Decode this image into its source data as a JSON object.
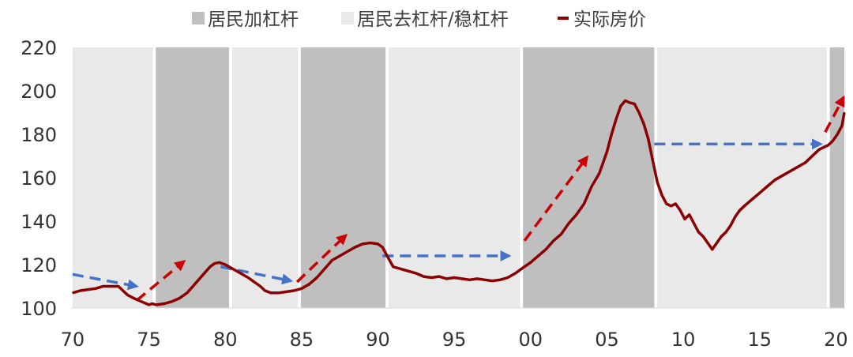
{
  "chart_data": {
    "type": "line",
    "x_range": [
      1969.9,
      2020.6
    ],
    "ylim": [
      100,
      220
    ],
    "y_ticks": [
      "100",
      "120",
      "140",
      "160",
      "180",
      "200",
      "220"
    ],
    "x_ticks": [
      {
        "value": 1970,
        "label": "70"
      },
      {
        "value": 1975,
        "label": "75"
      },
      {
        "value": 1980,
        "label": "80"
      },
      {
        "value": 1985,
        "label": "85"
      },
      {
        "value": 1990,
        "label": "90"
      },
      {
        "value": 1995,
        "label": "95"
      },
      {
        "value": 2000,
        "label": "00"
      },
      {
        "value": 2005,
        "label": "05"
      },
      {
        "value": 2010,
        "label": "10"
      },
      {
        "value": 2015,
        "label": "15"
      },
      {
        "value": 2020,
        "label": "20"
      }
    ],
    "grid": false,
    "legend": {
      "position": "top",
      "items": [
        {
          "label": "居民加杠杆",
          "color": "#bfbfbf",
          "marker": "square"
        },
        {
          "label": "居民去杠杆/稳杠杆",
          "color": "#e9e9e9",
          "marker": "square"
        },
        {
          "label": "实际房价",
          "color": "#8b0000",
          "marker": "line"
        }
      ]
    },
    "regimes": [
      {
        "kind": "deleveraging",
        "from": 1970.0,
        "to": 1975.25,
        "color": "#e9e9e9"
      },
      {
        "kind": "leveraging",
        "from": 1975.45,
        "to": 1980.25,
        "color": "#bfbfbf"
      },
      {
        "kind": "deleveraging",
        "from": 1980.45,
        "to": 1984.75,
        "color": "#e9e9e9"
      },
      {
        "kind": "leveraging",
        "from": 1984.95,
        "to": 1990.5,
        "color": "#bfbfbf"
      },
      {
        "kind": "deleveraging",
        "from": 1990.7,
        "to": 1999.3,
        "color": "#e9e9e9"
      },
      {
        "kind": "leveraging",
        "from": 1999.5,
        "to": 2008.1,
        "color": "#bfbfbf"
      },
      {
        "kind": "deleveraging",
        "from": 2008.3,
        "to": 2019.4,
        "color": "#e9e9e9"
      },
      {
        "kind": "leveraging",
        "from": 2019.6,
        "to": 2020.55,
        "color": "#bfbfbf"
      }
    ],
    "series": [
      {
        "name": "实际房价",
        "color": "#8b0000",
        "x": [
          1970.0,
          1970.5,
          1971.0,
          1971.5,
          1972.0,
          1972.5,
          1973.0,
          1973.3,
          1973.6,
          1974.0,
          1974.5,
          1975.0,
          1975.2,
          1975.5,
          1976.0,
          1976.5,
          1977.0,
          1977.5,
          1978.0,
          1978.5,
          1979.0,
          1979.3,
          1979.6,
          1980.0,
          1980.5,
          1981.0,
          1981.5,
          1982.0,
          1982.3,
          1982.6,
          1983.0,
          1983.5,
          1984.0,
          1984.5,
          1985.0,
          1985.5,
          1986.0,
          1986.5,
          1987.0,
          1987.5,
          1988.0,
          1988.5,
          1989.0,
          1989.5,
          1990.0,
          1990.3,
          1990.6,
          1991.0,
          1991.5,
          1992.0,
          1992.5,
          1993.0,
          1993.5,
          1994.0,
          1994.5,
          1995.0,
          1995.5,
          1996.0,
          1996.5,
          1997.0,
          1997.5,
          1998.0,
          1998.5,
          1999.0,
          1999.5,
          2000.0,
          2000.5,
          2001.0,
          2001.5,
          2002.0,
          2002.5,
          2003.0,
          2003.5,
          2004.0,
          2004.5,
          2005.0,
          2005.3,
          2005.6,
          2005.9,
          2006.2,
          2006.5,
          2006.8,
          2007.1,
          2007.4,
          2007.7,
          2008.0,
          2008.3,
          2008.6,
          2008.9,
          2009.2,
          2009.5,
          2009.8,
          2010.1,
          2010.4,
          2010.7,
          2011.0,
          2011.3,
          2011.6,
          2011.9,
          2012.2,
          2012.5,
          2012.8,
          2013.1,
          2013.4,
          2013.7,
          2014.0,
          2014.5,
          2015.0,
          2015.5,
          2016.0,
          2016.5,
          2017.0,
          2017.5,
          2018.0,
          2018.3,
          2018.6,
          2018.9,
          2019.2,
          2019.5,
          2019.8,
          2020.1,
          2020.4,
          2020.55
        ],
        "values": [
          107,
          108,
          108.5,
          109,
          110,
          110,
          110,
          108,
          106,
          104.5,
          103,
          101.5,
          102,
          101.5,
          102,
          103,
          104.5,
          107,
          111,
          115,
          119,
          120.5,
          121,
          120,
          118,
          116,
          114,
          111.5,
          110,
          108,
          107,
          107,
          107.5,
          108,
          109,
          111,
          114,
          118,
          122,
          124,
          126,
          128,
          129.5,
          130,
          129.5,
          128,
          124,
          119,
          118,
          117,
          116,
          114.5,
          114,
          114.5,
          113.5,
          114,
          113.5,
          113,
          113.5,
          113,
          112.5,
          113,
          114,
          116,
          118.5,
          121,
          124,
          127,
          131,
          134,
          139,
          143,
          148,
          156,
          162,
          172,
          180,
          187,
          193,
          195.5,
          194.5,
          194,
          190,
          185,
          178,
          168,
          158,
          152,
          148,
          147,
          148,
          145,
          141,
          143,
          139,
          135,
          133,
          130,
          127,
          130,
          133,
          135,
          138,
          142,
          145,
          147,
          150,
          153,
          156,
          159,
          161,
          163,
          165,
          167,
          169,
          171,
          173,
          174,
          175,
          177,
          180,
          184,
          190
        ]
      }
    ],
    "arrows": [
      {
        "kind": "flat",
        "color": "#4472c4",
        "x1": 1970.0,
        "y1": 115.5,
        "x2": 1974.2,
        "y2": 110
      },
      {
        "kind": "up",
        "color": "#cc0000",
        "x1": 1974.2,
        "y1": 103.5,
        "x2": 1977.3,
        "y2": 121.5
      },
      {
        "kind": "flat",
        "color": "#4472c4",
        "x1": 1979.7,
        "y1": 119,
        "x2": 1984.3,
        "y2": 112.5
      },
      {
        "kind": "up",
        "color": "#cc0000",
        "x1": 1984.7,
        "y1": 112,
        "x2": 1987.9,
        "y2": 133.5
      },
      {
        "kind": "flat",
        "color": "#4472c4",
        "x1": 1990.3,
        "y1": 124,
        "x2": 1998.6,
        "y2": 124
      },
      {
        "kind": "up",
        "color": "#cc0000",
        "x1": 1999.6,
        "y1": 131,
        "x2": 2003.7,
        "y2": 169.5
      },
      {
        "kind": "flat",
        "color": "#4472c4",
        "x1": 2008.1,
        "y1": 175.5,
        "x2": 2019.0,
        "y2": 175.5
      },
      {
        "kind": "up",
        "color": "#cc0000",
        "x1": 2019.3,
        "y1": 181,
        "x2": 2020.5,
        "y2": 197
      }
    ]
  }
}
